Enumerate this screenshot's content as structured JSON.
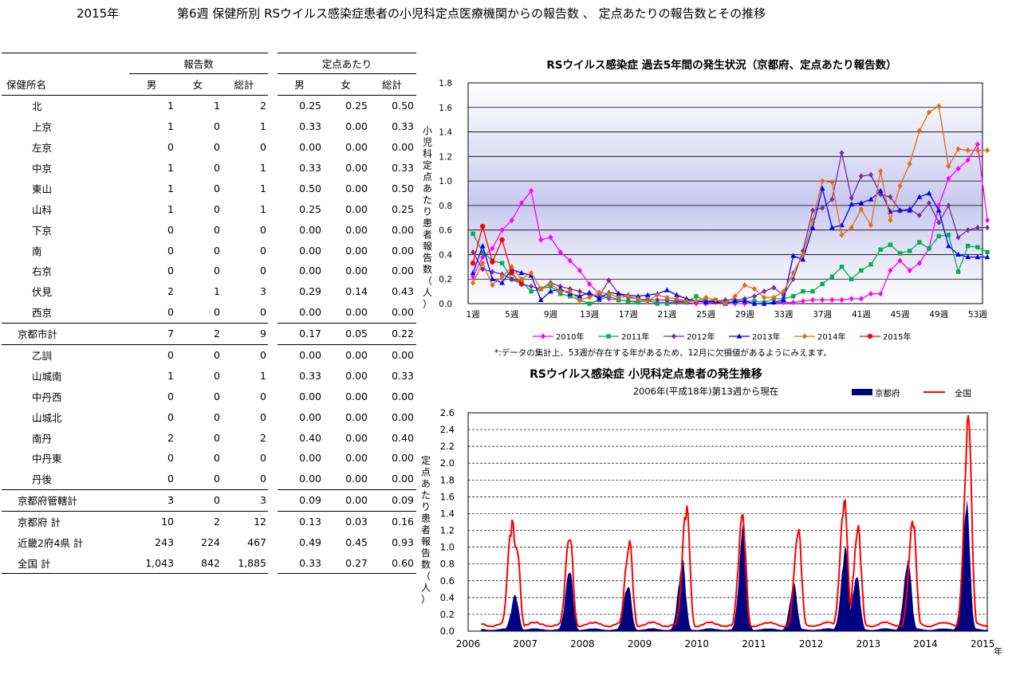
{
  "header": {
    "year": "2015年",
    "title": "第6週 保健所別 RSウイルス感染症患者の小児科定点医療機関からの報告数 、 定点あたりの報告数とその推移"
  },
  "table": {
    "group_reports": "報告数",
    "group_per_point": "定点あたり",
    "col_name": "保健所名",
    "col_male": "男",
    "col_female": "女",
    "col_total": "総計",
    "rows": [
      {
        "name": "北",
        "m": "1",
        "f": "1",
        "t": "2",
        "pm": "0.25",
        "pf": "0.25",
        "pt": "0.50",
        "kind": "in"
      },
      {
        "name": "上京",
        "m": "1",
        "f": "0",
        "t": "1",
        "pm": "0.33",
        "pf": "0.00",
        "pt": "0.33",
        "kind": "in"
      },
      {
        "name": "左京",
        "m": "0",
        "f": "0",
        "t": "0",
        "pm": "0.00",
        "pf": "0.00",
        "pt": "0.00",
        "kind": "in"
      },
      {
        "name": "中京",
        "m": "1",
        "f": "0",
        "t": "1",
        "pm": "0.33",
        "pf": "0.00",
        "pt": "0.33",
        "kind": "in"
      },
      {
        "name": "東山",
        "m": "1",
        "f": "0",
        "t": "1",
        "pm": "0.50",
        "pf": "0.00",
        "pt": "0.50",
        "kind": "in"
      },
      {
        "name": "山科",
        "m": "1",
        "f": "0",
        "t": "1",
        "pm": "0.25",
        "pf": "0.00",
        "pt": "0.25",
        "kind": "in"
      },
      {
        "name": "下京",
        "m": "0",
        "f": "0",
        "t": "0",
        "pm": "0.00",
        "pf": "0.00",
        "pt": "0.00",
        "kind": "in"
      },
      {
        "name": "南",
        "m": "0",
        "f": "0",
        "t": "0",
        "pm": "0.00",
        "pf": "0.00",
        "pt": "0.00",
        "kind": "in"
      },
      {
        "name": "右京",
        "m": "0",
        "f": "0",
        "t": "0",
        "pm": "0.00",
        "pf": "0.00",
        "pt": "0.00",
        "kind": "in"
      },
      {
        "name": "伏見",
        "m": "2",
        "f": "1",
        "t": "3",
        "pm": "0.29",
        "pf": "0.14",
        "pt": "0.43",
        "kind": "in"
      },
      {
        "name": "西京",
        "m": "0",
        "f": "0",
        "t": "0",
        "pm": "0.00",
        "pf": "0.00",
        "pt": "0.00",
        "kind": "in bot"
      },
      {
        "name": "京都市計",
        "m": "7",
        "f": "2",
        "t": "9",
        "pm": "0.17",
        "pf": "0.05",
        "pt": "0.22",
        "kind": "sub bot"
      },
      {
        "name": "乙訓",
        "m": "0",
        "f": "0",
        "t": "0",
        "pm": "0.00",
        "pf": "0.00",
        "pt": "0.00",
        "kind": "in"
      },
      {
        "name": "山城南",
        "m": "1",
        "f": "0",
        "t": "1",
        "pm": "0.33",
        "pf": "0.00",
        "pt": "0.33",
        "kind": "in"
      },
      {
        "name": "中丹西",
        "m": "0",
        "f": "0",
        "t": "0",
        "pm": "0.00",
        "pf": "0.00",
        "pt": "0.00",
        "kind": "in"
      },
      {
        "name": "山城北",
        "m": "0",
        "f": "0",
        "t": "0",
        "pm": "0.00",
        "pf": "0.00",
        "pt": "0.00",
        "kind": "in"
      },
      {
        "name": "南丹",
        "m": "2",
        "f": "0",
        "t": "2",
        "pm": "0.40",
        "pf": "0.00",
        "pt": "0.40",
        "kind": "in"
      },
      {
        "name": "中丹東",
        "m": "0",
        "f": "0",
        "t": "0",
        "pm": "0.00",
        "pf": "0.00",
        "pt": "0.00",
        "kind": "in"
      },
      {
        "name": "丹後",
        "m": "0",
        "f": "0",
        "t": "0",
        "pm": "0.00",
        "pf": "0.00",
        "pt": "0.00",
        "kind": "in bot"
      },
      {
        "name": "京都府管轄計",
        "m": "3",
        "f": "0",
        "t": "3",
        "pm": "0.09",
        "pf": "0.00",
        "pt": "0.09",
        "kind": "sub bot"
      },
      {
        "name": "京都府 計",
        "m": "10",
        "f": "2",
        "t": "12",
        "pm": "0.13",
        "pf": "0.03",
        "pt": "0.16",
        "kind": "sub"
      },
      {
        "name": "近畿2府4県 計",
        "m": "243",
        "f": "224",
        "t": "467",
        "pm": "0.49",
        "pf": "0.45",
        "pt": "0.93",
        "kind": "sub"
      },
      {
        "name": "全国 計",
        "m": "1,043",
        "f": "842",
        "t": "1,885",
        "pm": "0.33",
        "pf": "0.27",
        "pt": "0.60",
        "kind": "sub endline"
      }
    ]
  },
  "chart_data": [
    {
      "type": "line",
      "title": "RSウイルス感染症 過去5年間の発生状況（京都府、定点あたり報告数）",
      "ylabel": "小児科定点あたり患者報告数（人）",
      "ylim": [
        0,
        1.8
      ],
      "yticks": [
        "0.0",
        "0.2",
        "0.4",
        "0.6",
        "0.8",
        "1.0",
        "1.2",
        "1.4",
        "1.6",
        "1.8"
      ],
      "xticks": [
        "1週",
        "5週",
        "9週",
        "13週",
        "17週",
        "21週",
        "25週",
        "29週",
        "33週",
        "37週",
        "41週",
        "45週",
        "49週",
        "53週"
      ],
      "grid": true,
      "legend_position": "bottom",
      "note": "*:データの集計上、53週が存在する年があるため、12月に欠損値があるようにみえます。",
      "series": [
        {
          "name": "2010年",
          "color": "#ff00ff",
          "marker": "diamond",
          "values": [
            0.22,
            0.38,
            0.45,
            0.6,
            0.68,
            0.82,
            0.92,
            0.52,
            0.54,
            0.42,
            0.35,
            0.27,
            0.16,
            0.08,
            0.04,
            0.03,
            0.02,
            0.02,
            0.02,
            0.01,
            0.01,
            0.01,
            0.01,
            0.0,
            0.0,
            0.01,
            0.0,
            0.0,
            0.0,
            0.0,
            0.0,
            0.01,
            0.01,
            0.01,
            0.02,
            0.03,
            0.03,
            0.03,
            0.03,
            0.04,
            0.04,
            0.08,
            0.08,
            0.27,
            0.35,
            0.27,
            0.33,
            0.45,
            0.8,
            1.02,
            1.1,
            1.17,
            1.3,
            0.68
          ]
        },
        {
          "name": "2011年",
          "color": "#00b050",
          "marker": "square",
          "values": [
            0.57,
            0.42,
            0.35,
            0.33,
            0.2,
            0.18,
            0.1,
            0.12,
            0.14,
            0.08,
            0.06,
            0.03,
            0.0,
            0.03,
            0.06,
            0.03,
            0.02,
            0.01,
            0.03,
            0.0,
            0.0,
            0.02,
            0.01,
            0.06,
            0.02,
            0.03,
            0.01,
            0.01,
            0.02,
            0.02,
            0.01,
            0.04,
            0.04,
            0.06,
            0.1,
            0.1,
            0.16,
            0.22,
            0.3,
            0.2,
            0.27,
            0.32,
            0.44,
            0.48,
            0.41,
            0.43,
            0.5,
            0.45,
            0.55,
            0.56,
            0.26,
            0.47,
            0.46,
            0.42
          ]
        },
        {
          "name": "2012年",
          "color": "#7030a0",
          "marker": "diamond",
          "values": [
            0.42,
            0.28,
            0.26,
            0.24,
            0.2,
            0.16,
            0.14,
            0.12,
            0.17,
            0.14,
            0.12,
            0.1,
            0.07,
            0.06,
            0.19,
            0.08,
            0.05,
            0.04,
            0.03,
            0.03,
            0.03,
            0.02,
            0.02,
            0.02,
            0.02,
            0.02,
            0.03,
            0.03,
            0.04,
            0.06,
            0.1,
            0.13,
            0.07,
            0.2,
            0.43,
            0.76,
            0.78,
            0.85,
            1.23,
            0.86,
            1.04,
            1.05,
            0.89,
            0.87,
            0.76,
            0.77,
            0.72,
            0.82,
            0.66,
            0.8,
            0.54,
            0.6,
            0.62,
            0.62
          ]
        },
        {
          "name": "2013年",
          "color": "#0000ff",
          "marker": "triangle",
          "values": [
            0.25,
            0.47,
            0.2,
            0.17,
            0.28,
            0.25,
            0.23,
            0.03,
            0.1,
            0.12,
            0.08,
            0.06,
            0.09,
            0.04,
            0.09,
            0.08,
            0.07,
            0.06,
            0.07,
            0.08,
            0.11,
            0.07,
            0.04,
            0.02,
            0.01,
            0.02,
            0.0,
            0.02,
            0.02,
            0.0,
            0.0,
            0.01,
            0.03,
            0.39,
            0.36,
            0.62,
            0.94,
            0.62,
            0.64,
            0.81,
            0.82,
            0.85,
            0.92,
            0.75,
            0.76,
            0.76,
            0.87,
            0.9,
            0.76,
            0.47,
            0.4,
            0.38,
            0.38,
            0.38
          ]
        },
        {
          "name": "2014年",
          "color": "#e36c09",
          "marker": "diamond",
          "values": [
            0.17,
            0.33,
            0.15,
            0.22,
            0.3,
            0.2,
            0.25,
            0.12,
            0.16,
            0.1,
            0.1,
            0.03,
            0.05,
            0.09,
            0.08,
            0.05,
            0.06,
            0.04,
            0.02,
            0.07,
            0.05,
            0.04,
            0.02,
            0.02,
            0.05,
            0.03,
            0.0,
            0.06,
            0.15,
            0.12,
            0.05,
            0.05,
            0.1,
            0.25,
            0.4,
            0.68,
            1.0,
            0.99,
            0.56,
            0.62,
            0.77,
            0.64,
            1.08,
            0.68,
            0.96,
            1.14,
            1.41,
            1.56,
            1.61,
            1.12,
            1.26,
            1.25,
            1.25,
            1.25
          ]
        },
        {
          "name": "2015年",
          "color": "#ff0000",
          "marker": "circle",
          "values": [
            0.33,
            0.63,
            0.34,
            0.52,
            0.25,
            0.16
          ]
        }
      ]
    },
    {
      "type": "area",
      "title": "RSウイルス感染症 小児科定点患者の発生推移",
      "subtitle": "2006年(平成18年)第13週から現在",
      "ylabel": "定点あたり患者報告数（人）",
      "ylim": [
        0,
        2.6
      ],
      "yticks": [
        "0.0",
        "0.2",
        "0.4",
        "0.6",
        "0.8",
        "1.0",
        "1.2",
        "1.4",
        "1.6",
        "1.8",
        "2.0",
        "2.2",
        "2.4",
        "2.6"
      ],
      "x_year_labels": [
        "2006",
        "2007",
        "2008",
        "2009",
        "2010",
        "2011",
        "2012",
        "2013",
        "2014",
        "2015"
      ],
      "x_unit": "年",
      "grid": true,
      "legend_position": "top-right",
      "series": [
        {
          "name": "京都府",
          "style": "bars",
          "color": "#000080",
          "peaks": [
            {
              "year": 2006.83,
              "value": 0.45
            },
            {
              "year": 2007.78,
              "value": 0.77
            },
            {
              "year": 2008.8,
              "value": 0.6
            },
            {
              "year": 2009.75,
              "value": 0.9
            },
            {
              "year": 2010.82,
              "value": 1.31
            },
            {
              "year": 2011.7,
              "value": 0.58
            },
            {
              "year": 2012.6,
              "value": 1.02
            },
            {
              "year": 2012.8,
              "value": 0.72
            },
            {
              "year": 2013.7,
              "value": 0.92
            },
            {
              "year": 2014.72,
              "value": 1.6
            }
          ]
        },
        {
          "name": "全国",
          "style": "line",
          "color": "#ff0000",
          "peaks": [
            {
              "year": 2006.77,
              "value": 1.36
            },
            {
              "year": 2006.85,
              "value": 1.09
            },
            {
              "year": 2007.78,
              "value": 1.2
            },
            {
              "year": 2008.82,
              "value": 1.14
            },
            {
              "year": 2009.82,
              "value": 1.55
            },
            {
              "year": 2010.8,
              "value": 1.4
            },
            {
              "year": 2011.78,
              "value": 1.24
            },
            {
              "year": 2012.58,
              "value": 1.62
            },
            {
              "year": 2012.82,
              "value": 1.33
            },
            {
              "year": 2013.78,
              "value": 1.42
            },
            {
              "year": 2014.75,
              "value": 2.61
            }
          ]
        }
      ]
    }
  ]
}
